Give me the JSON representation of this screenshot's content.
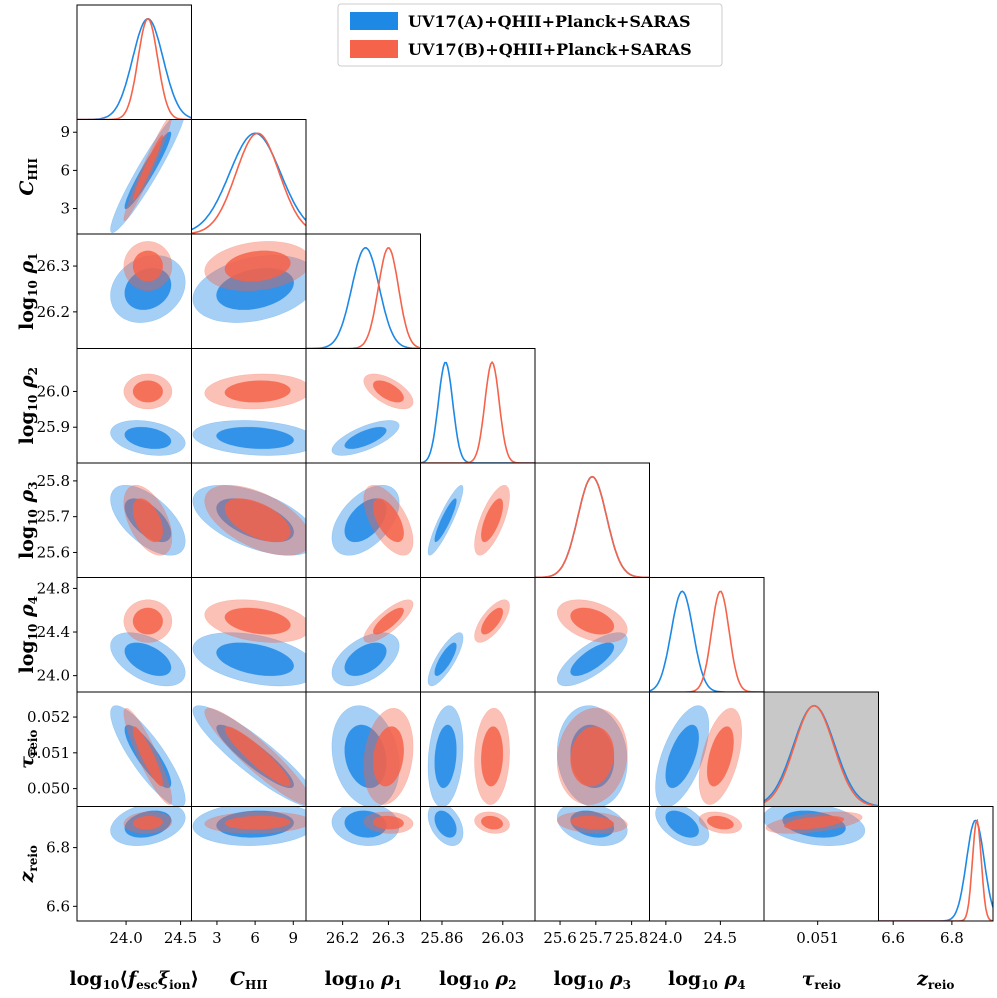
{
  "chart_data": {
    "type": "corner",
    "legend": {
      "placement": "top-right",
      "entries": [
        {
          "name": "UV17(A)+QHII+Planck+SARAS",
          "color": "#1e88e5"
        },
        {
          "name": "UV17(B)+QHII+Planck+SARAS",
          "color": "#f4634a"
        }
      ]
    },
    "colors": {
      "A": "#1e88e5",
      "B": "#f4634a",
      "shaded_panel": "#c8c8c8"
    },
    "parameters": [
      {
        "id": "f",
        "label": "log10⟨f_esc ξ_ion⟩",
        "range": [
          23.55,
          24.6
        ],
        "ticks": [
          {
            "v": 24.0,
            "t": "24.0"
          },
          {
            "v": 24.5,
            "t": "24.5"
          }
        ]
      },
      {
        "id": "c",
        "label": "C_HII",
        "range": [
          1.0,
          10.0
        ],
        "ticks": [
          {
            "v": 3,
            "t": "3"
          },
          {
            "v": 6,
            "t": "6"
          },
          {
            "v": 9,
            "t": "9"
          }
        ]
      },
      {
        "id": "r1",
        "label": "log10 ρ1",
        "range": [
          26.12,
          26.37
        ],
        "ticks": [
          {
            "v": 26.2,
            "t": "26.2"
          },
          {
            "v": 26.3,
            "t": "26.3"
          }
        ]
      },
      {
        "id": "r2",
        "label": "log10 ρ2",
        "range": [
          25.8,
          26.12
        ],
        "ticks": [
          {
            "v": 25.9,
            "t": "25.9"
          },
          {
            "v": 26.0,
            "t": "26.0"
          }
        ],
        "bottom_ticks": [
          {
            "v": 25.86,
            "t": "25.86"
          },
          {
            "v": 26.03,
            "t": "26.03"
          }
        ]
      },
      {
        "id": "r3",
        "label": "log10 ρ3",
        "range": [
          25.53,
          25.85
        ],
        "ticks": [
          {
            "v": 25.6,
            "t": "25.6"
          },
          {
            "v": 25.7,
            "t": "25.7"
          },
          {
            "v": 25.8,
            "t": "25.8"
          }
        ]
      },
      {
        "id": "r4",
        "label": "log10 ρ4",
        "range": [
          23.85,
          24.9
        ],
        "ticks": [
          {
            "v": 24.0,
            "t": "24.0"
          },
          {
            "v": 24.4,
            "t": "24.4"
          },
          {
            "v": 24.8,
            "t": "24.8"
          }
        ],
        "bottom_ticks": [
          {
            "v": 24.0,
            "t": "24.0"
          },
          {
            "v": 24.5,
            "t": "24.5"
          }
        ]
      },
      {
        "id": "tau",
        "label": "τ_reio",
        "range": [
          0.0495,
          0.0527
        ],
        "ticks": [
          {
            "v": 0.05,
            "t": "0.050"
          },
          {
            "v": 0.051,
            "t": "0.051"
          },
          {
            "v": 0.052,
            "t": "0.052"
          }
        ],
        "bottom_ticks": [
          {
            "v": 0.051,
            "t": "0.051"
          }
        ]
      },
      {
        "id": "z",
        "label": "z_reio",
        "range": [
          6.55,
          6.94
        ],
        "ticks": [
          {
            "v": 6.6,
            "t": "6.6"
          },
          {
            "v": 6.8,
            "t": "6.8"
          }
        ]
      }
    ],
    "posteriors": {
      "A": {
        "mean": [
          24.2,
          6.0,
          26.25,
          25.87,
          25.69,
          24.15,
          0.0509,
          6.88
        ],
        "sigma": [
          0.14,
          2.0,
          0.03,
          0.02,
          0.04,
          0.1,
          0.00058,
          0.03
        ]
      },
      "B": {
        "mean": [
          24.2,
          6.2,
          26.3,
          26.0,
          25.69,
          24.5,
          0.0509,
          6.885
        ],
        "sigma": [
          0.09,
          1.7,
          0.022,
          0.02,
          0.04,
          0.08,
          0.00055,
          0.015
        ]
      }
    },
    "correlations": {
      "A": {
        "1,0": 0.95,
        "2,0": 0.2,
        "2,1": 0.3,
        "3,0": -0.3,
        "3,1": -0.2,
        "3,2": 0.7,
        "4,0": -0.6,
        "4,1": -0.55,
        "4,2": 0.5,
        "4,3": 0.9,
        "5,0": -0.5,
        "5,1": -0.4,
        "5,2": 0.5,
        "5,3": 0.8,
        "5,4": 0.75,
        "6,0": -0.85,
        "6,1": -0.9,
        "6,2": -0.2,
        "6,3": 0.2,
        "6,4": -0.1,
        "6,5": 0.6,
        "7,0": 0.3,
        "7,1": 0.1,
        "7,2": -0.1,
        "7,3": -0.4,
        "7,4": -0.3,
        "7,5": -0.5,
        "7,6": -0.3
      },
      "B": {
        "1,0": 0.97,
        "2,0": 0.0,
        "2,1": 0.2,
        "3,0": 0.0,
        "3,1": 0.1,
        "3,2": -0.6,
        "4,0": -0.5,
        "4,1": -0.55,
        "4,2": -0.6,
        "4,3": 0.7,
        "5,0": 0.0,
        "5,1": -0.3,
        "5,2": 0.8,
        "5,3": 0.7,
        "5,4": -0.4,
        "6,0": -0.9,
        "6,1": -0.92,
        "6,2": 0.2,
        "6,3": 0.1,
        "6,4": 0.1,
        "6,5": 0.5,
        "7,0": 0.1,
        "7,1": 0.1,
        "7,2": -0.1,
        "7,3": -0.2,
        "7,4": -0.2,
        "7,5": -0.3,
        "7,6": 0.5
      }
    },
    "grid": false
  }
}
